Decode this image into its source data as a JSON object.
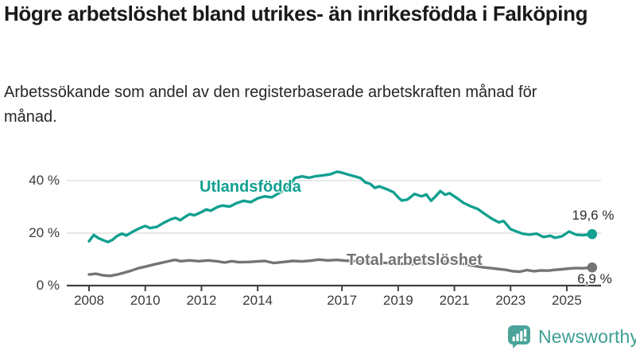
{
  "page": {
    "background": "#ffffff"
  },
  "header": {
    "title": "Högre arbetslöshet bland utrikes- än inrikesfödda i Falköping",
    "subtitle": "Arbetssökande som andel av den registerbaserade arbetskraften månad för månad."
  },
  "footer": {
    "brand": "Newsworthy",
    "brand_color": "#3E9E93",
    "logo_icon": "speech-bubble-bar-chart-icon",
    "logo_color": "#4AA49A"
  },
  "chart_data": {
    "type": "line",
    "title": "Högre arbetslöshet bland utrikes- än inrikesfödda i Falköping",
    "subtitle": "Arbetssökande som andel av den registerbaserade arbetskraften månad för månad.",
    "unit": "%",
    "grid": "horizontal",
    "legend_position": "inline-on-lines",
    "colors": {
      "axis": "#404040",
      "gridline": "#D9D9D9",
      "tick_text": "#3A3A3A",
      "value_label_text": "#2B2B2B"
    },
    "x_axis": {
      "range": [
        2008,
        2026
      ],
      "ticks": [
        {
          "value": 2008,
          "label": "2008"
        },
        {
          "value": 2010,
          "label": "2010"
        },
        {
          "value": 2012,
          "label": "2012"
        },
        {
          "value": 2014,
          "label": "2014"
        },
        {
          "value": 2017,
          "label": "2017"
        },
        {
          "value": 2019,
          "label": "2019"
        },
        {
          "value": 2021,
          "label": "2021"
        },
        {
          "value": 2023,
          "label": "2023"
        },
        {
          "value": 2025,
          "label": "2025"
        }
      ]
    },
    "y_axis": {
      "range": [
        0,
        45
      ],
      "ticks": [
        {
          "value": 40,
          "label": "40 %"
        },
        {
          "value": 20,
          "label": "20 %"
        },
        {
          "value": 0,
          "label": "0 %"
        }
      ]
    },
    "series": [
      {
        "name": "Utlandsfödda",
        "color": "#12A090",
        "end_value": 19.6,
        "end_label": "19,6 %",
        "points": [
          [
            2008.0,
            16.9
          ],
          [
            2008.17,
            19.3
          ],
          [
            2008.33,
            18.1
          ],
          [
            2008.5,
            17.3
          ],
          [
            2008.67,
            16.6
          ],
          [
            2008.83,
            17.4
          ],
          [
            2009.0,
            18.9
          ],
          [
            2009.17,
            19.8
          ],
          [
            2009.33,
            19.1
          ],
          [
            2009.58,
            20.7
          ],
          [
            2009.83,
            22.0
          ],
          [
            2010.0,
            22.7
          ],
          [
            2010.17,
            21.9
          ],
          [
            2010.42,
            22.4
          ],
          [
            2010.67,
            24.0
          ],
          [
            2010.92,
            25.3
          ],
          [
            2011.08,
            25.8
          ],
          [
            2011.25,
            24.9
          ],
          [
            2011.42,
            26.2
          ],
          [
            2011.58,
            27.2
          ],
          [
            2011.75,
            26.8
          ],
          [
            2012.0,
            28.0
          ],
          [
            2012.17,
            29.0
          ],
          [
            2012.33,
            28.5
          ],
          [
            2012.58,
            30.0
          ],
          [
            2012.75,
            30.5
          ],
          [
            2013.0,
            30.1
          ],
          [
            2013.25,
            31.4
          ],
          [
            2013.5,
            32.3
          ],
          [
            2013.75,
            31.8
          ],
          [
            2014.0,
            33.2
          ],
          [
            2014.25,
            34.0
          ],
          [
            2014.5,
            33.6
          ],
          [
            2014.75,
            35.2
          ],
          [
            2015.0,
            36.6
          ],
          [
            2015.17,
            38.6
          ],
          [
            2015.33,
            41.0
          ],
          [
            2015.58,
            41.6
          ],
          [
            2015.83,
            41.1
          ],
          [
            2016.08,
            41.7
          ],
          [
            2016.33,
            42.0
          ],
          [
            2016.58,
            42.4
          ],
          [
            2016.83,
            43.4
          ],
          [
            2017.0,
            43.0
          ],
          [
            2017.25,
            42.2
          ],
          [
            2017.5,
            41.5
          ],
          [
            2017.67,
            40.9
          ],
          [
            2017.83,
            39.3
          ],
          [
            2018.0,
            38.8
          ],
          [
            2018.17,
            37.2
          ],
          [
            2018.33,
            37.8
          ],
          [
            2018.58,
            36.8
          ],
          [
            2018.83,
            35.6
          ],
          [
            2019.0,
            33.6
          ],
          [
            2019.13,
            32.4
          ],
          [
            2019.33,
            32.8
          ],
          [
            2019.58,
            34.9
          ],
          [
            2019.83,
            34.0
          ],
          [
            2020.0,
            34.7
          ],
          [
            2020.17,
            32.3
          ],
          [
            2020.33,
            34.0
          ],
          [
            2020.5,
            36.0
          ],
          [
            2020.67,
            34.6
          ],
          [
            2020.83,
            35.2
          ],
          [
            2021.08,
            33.4
          ],
          [
            2021.33,
            31.5
          ],
          [
            2021.58,
            30.2
          ],
          [
            2021.83,
            29.2
          ],
          [
            2022.08,
            27.3
          ],
          [
            2022.33,
            25.5
          ],
          [
            2022.58,
            24.1
          ],
          [
            2022.75,
            24.6
          ],
          [
            2023.0,
            21.5
          ],
          [
            2023.17,
            20.8
          ],
          [
            2023.42,
            19.8
          ],
          [
            2023.67,
            19.4
          ],
          [
            2023.92,
            19.8
          ],
          [
            2024.17,
            18.5
          ],
          [
            2024.42,
            19.0
          ],
          [
            2024.58,
            18.2
          ],
          [
            2024.83,
            18.8
          ],
          [
            2025.08,
            20.6
          ],
          [
            2025.33,
            19.4
          ],
          [
            2025.58,
            19.2
          ],
          [
            2025.9,
            19.6
          ]
        ]
      },
      {
        "name": "Total arbetslöshet",
        "color": "#747474",
        "end_value": 6.9,
        "end_label": "6,9 %",
        "points": [
          [
            2008.0,
            4.2
          ],
          [
            2008.25,
            4.5
          ],
          [
            2008.5,
            3.9
          ],
          [
            2008.75,
            3.7
          ],
          [
            2009.0,
            4.2
          ],
          [
            2009.25,
            4.9
          ],
          [
            2009.5,
            5.7
          ],
          [
            2009.75,
            6.6
          ],
          [
            2010.0,
            7.2
          ],
          [
            2010.33,
            8.1
          ],
          [
            2010.67,
            8.9
          ],
          [
            2010.92,
            9.5
          ],
          [
            2011.08,
            9.8
          ],
          [
            2011.25,
            9.3
          ],
          [
            2011.58,
            9.6
          ],
          [
            2011.92,
            9.3
          ],
          [
            2012.25,
            9.6
          ],
          [
            2012.58,
            9.2
          ],
          [
            2012.83,
            8.8
          ],
          [
            2013.08,
            9.3
          ],
          [
            2013.33,
            8.9
          ],
          [
            2013.67,
            9.0
          ],
          [
            2014.0,
            9.2
          ],
          [
            2014.25,
            9.4
          ],
          [
            2014.58,
            8.6
          ],
          [
            2014.92,
            9.0
          ],
          [
            2015.25,
            9.4
          ],
          [
            2015.58,
            9.2
          ],
          [
            2015.92,
            9.5
          ],
          [
            2016.17,
            9.9
          ],
          [
            2016.5,
            9.6
          ],
          [
            2016.83,
            9.8
          ],
          [
            2017.08,
            9.5
          ],
          [
            2017.5,
            9.3
          ],
          [
            2018.0,
            9.0
          ],
          [
            2018.5,
            8.7
          ],
          [
            2019.0,
            8.4
          ],
          [
            2019.5,
            8.2
          ],
          [
            2020.0,
            8.6
          ],
          [
            2020.42,
            9.3
          ],
          [
            2020.83,
            9.0
          ],
          [
            2021.25,
            8.4
          ],
          [
            2021.67,
            7.6
          ],
          [
            2022.0,
            7.0
          ],
          [
            2022.33,
            6.6
          ],
          [
            2022.58,
            6.3
          ],
          [
            2022.83,
            6.0
          ],
          [
            2023.08,
            5.5
          ],
          [
            2023.33,
            5.3
          ],
          [
            2023.58,
            5.9
          ],
          [
            2023.83,
            5.5
          ],
          [
            2024.08,
            5.8
          ],
          [
            2024.33,
            5.7
          ],
          [
            2024.58,
            6.0
          ],
          [
            2024.83,
            6.2
          ],
          [
            2025.08,
            6.5
          ],
          [
            2025.33,
            6.7
          ],
          [
            2025.58,
            6.6
          ],
          [
            2025.9,
            6.9
          ]
        ]
      }
    ]
  }
}
